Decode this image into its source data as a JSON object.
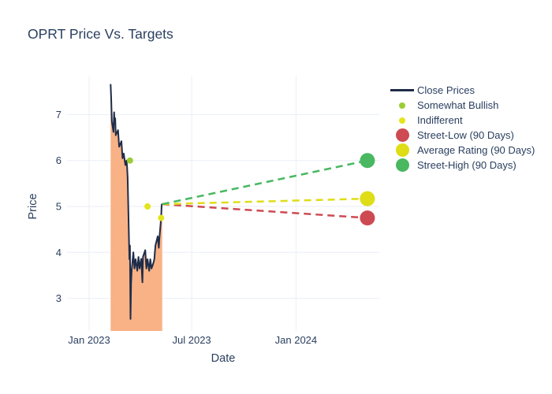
{
  "chart_data": {
    "type": "line",
    "title": "OPRT Price Vs. Targets",
    "xlabel": "Date",
    "ylabel": "Price",
    "x_tick_labels": [
      "Jan 2023",
      "Jul 2023",
      "Jan 2024"
    ],
    "x_tick_dates": [
      "2023-01-01",
      "2023-07-01",
      "2024-01-01"
    ],
    "y_ticks": [
      3,
      4,
      5,
      6,
      7
    ],
    "x_range": [
      "2022-11-23",
      "2024-05-27"
    ],
    "y_range": [
      2.29,
      7.83
    ],
    "grid": true,
    "legend_position": "top-right",
    "series": [
      {
        "name": "Close Prices",
        "kind": "line",
        "color": "#1f2c48",
        "fill_color": "#f8b286",
        "points": [
          [
            "2023-02-08",
            7.65
          ],
          [
            "2023-02-09",
            7.3
          ],
          [
            "2023-02-10",
            6.85
          ],
          [
            "2023-02-13",
            6.62
          ],
          [
            "2023-02-14",
            7.05
          ],
          [
            "2023-02-15",
            6.8
          ],
          [
            "2023-02-16",
            6.92
          ],
          [
            "2023-02-17",
            6.55
          ],
          [
            "2023-02-21",
            6.66
          ],
          [
            "2023-02-23",
            6.3
          ],
          [
            "2023-02-27",
            6.42
          ],
          [
            "2023-03-01",
            6.05
          ],
          [
            "2023-03-03",
            6.15
          ],
          [
            "2023-03-06",
            5.9
          ],
          [
            "2023-03-08",
            6.0
          ],
          [
            "2023-03-09",
            5.85
          ],
          [
            "2023-03-10",
            5.62
          ],
          [
            "2023-03-13",
            3.85
          ],
          [
            "2023-03-14",
            4.15
          ],
          [
            "2023-03-15",
            2.55
          ],
          [
            "2023-03-16",
            3.3
          ],
          [
            "2023-03-17",
            3.6
          ],
          [
            "2023-03-20",
            4.0
          ],
          [
            "2023-03-22",
            3.65
          ],
          [
            "2023-03-24",
            3.85
          ],
          [
            "2023-03-27",
            3.6
          ],
          [
            "2023-03-29",
            3.9
          ],
          [
            "2023-03-31",
            3.65
          ],
          [
            "2023-04-03",
            3.86
          ],
          [
            "2023-04-05",
            3.35
          ],
          [
            "2023-04-06",
            3.9
          ],
          [
            "2023-04-10",
            4.05
          ],
          [
            "2023-04-12",
            3.65
          ],
          [
            "2023-04-14",
            3.85
          ],
          [
            "2023-04-17",
            3.6
          ],
          [
            "2023-04-19",
            3.85
          ],
          [
            "2023-04-21",
            3.65
          ],
          [
            "2023-04-24",
            3.75
          ],
          [
            "2023-04-26",
            3.85
          ],
          [
            "2023-04-28",
            4.15
          ],
          [
            "2023-05-02",
            4.35
          ],
          [
            "2023-05-04",
            4.1
          ],
          [
            "2023-05-05",
            4.3
          ],
          [
            "2023-05-08",
            4.75
          ],
          [
            "2023-05-09",
            5.04
          ],
          [
            "2023-05-10",
            5.05
          ]
        ]
      },
      {
        "name": "Somewhat Bullish",
        "kind": "markers",
        "marker": "dot-small",
        "color": "#9acd32",
        "points": [
          [
            "2023-03-14",
            6.0
          ]
        ]
      },
      {
        "name": "Indifferent",
        "kind": "markers",
        "marker": "dot-small",
        "color": "#e4e41c",
        "points": [
          [
            "2023-04-14",
            5.0
          ],
          [
            "2023-05-08",
            4.75
          ]
        ]
      },
      {
        "name": "Street-Low (90 Days)",
        "kind": "target",
        "marker": "dot-big",
        "color": "#cd4a52",
        "from": [
          "2023-05-10",
          5.05
        ],
        "to": [
          "2024-05-06",
          4.75
        ]
      },
      {
        "name": "Average Rating (90 Days)",
        "kind": "target",
        "marker": "dot-big",
        "color": "#dedd16",
        "from": [
          "2023-05-10",
          5.05
        ],
        "to": [
          "2024-05-06",
          5.17
        ]
      },
      {
        "name": "Street-High (90 Days)",
        "kind": "target",
        "marker": "dot-big",
        "color": "#49b861",
        "from": [
          "2023-05-10",
          5.05
        ],
        "to": [
          "2024-05-06",
          6.0
        ]
      }
    ]
  },
  "legend": {
    "items": [
      {
        "label": "Close Prices",
        "swatch": "line",
        "color": "#1f2c48"
      },
      {
        "label": "Somewhat Bullish",
        "swatch": "dot-small",
        "color": "#9acd32"
      },
      {
        "label": "Indifferent",
        "swatch": "dot-small",
        "color": "#e4e41c"
      },
      {
        "label": "Street-Low (90 Days)",
        "swatch": "dot-big",
        "color": "#cd4a52"
      },
      {
        "label": "Average Rating (90 Days)",
        "swatch": "dot-big",
        "color": "#dedd16"
      },
      {
        "label": "Street-High (90 Days)",
        "swatch": "dot-big",
        "color": "#49b861"
      }
    ]
  },
  "colors": {
    "text": "#2a3f5f",
    "grid": "#e9eef7",
    "background": "#ffffff"
  }
}
